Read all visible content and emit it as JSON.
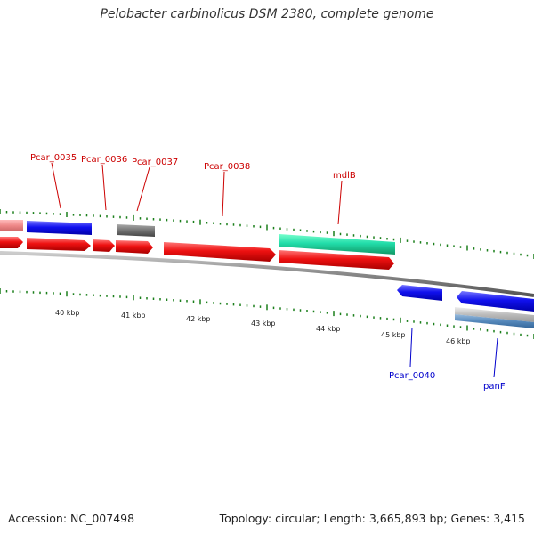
{
  "title": "Pelobacter carbinolicus DSM 2380, complete genome",
  "accession_text": "Accession: NC_007498",
  "summary_text": "Topology: circular; Length: 3,665,893 bp; Genes: 3,415",
  "colors": {
    "forward_gene": "#ee1111",
    "reverse_gene": "#1111ee",
    "rna_gene": "#22ddaa",
    "pseudo_gene": "#777777",
    "pale_gene": "#ee8888",
    "light_gene": "#bbbbbb",
    "steel_gene": "#5588bb",
    "backbone": "#888888",
    "tick": "#1b7f1b",
    "label_forward": "#cc0000",
    "label_reverse": "#0000cc",
    "scale_text": "#222222"
  },
  "scale_labels": [
    "40 kbp",
    "41 kbp",
    "42 kbp",
    "43 kbp",
    "44 kbp",
    "45 kbp",
    "46 kbp"
  ],
  "gene_labels": [
    {
      "text": "Pcar_0035",
      "strand": "forward"
    },
    {
      "text": "Pcar_0036",
      "strand": "forward"
    },
    {
      "text": "Pcar_0037",
      "strand": "forward"
    },
    {
      "text": "Pcar_0038",
      "strand": "forward"
    },
    {
      "text": "mdlB",
      "strand": "forward"
    },
    {
      "text": "Pcar_0040",
      "strand": "reverse"
    },
    {
      "text": "panF",
      "strand": "reverse"
    }
  ]
}
